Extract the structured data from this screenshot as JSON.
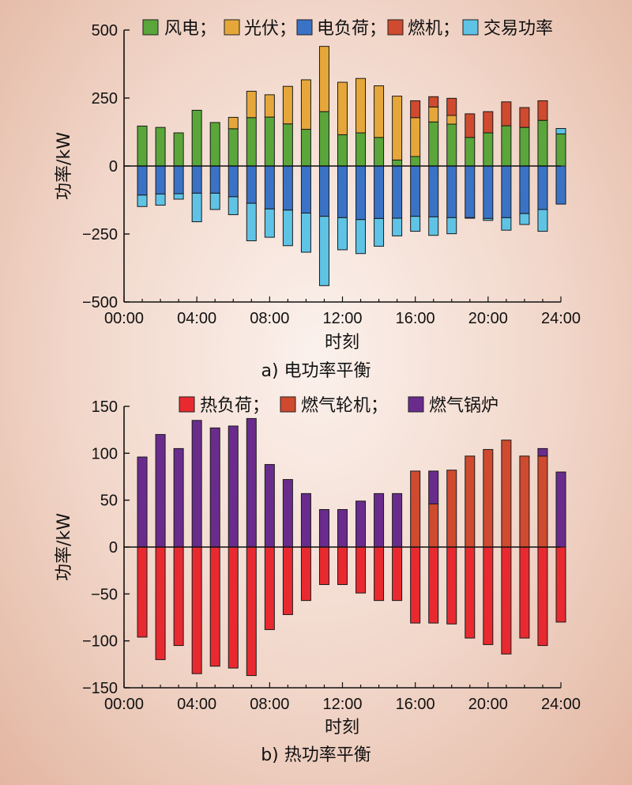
{
  "chart_data": [
    {
      "type": "bar",
      "stacked": true,
      "caption": "a) 电功率平衡",
      "xlabel": "时刻",
      "ylabel": "功率/kW",
      "ylim": [
        -500,
        500
      ],
      "yticks": [
        500,
        250,
        0,
        -250,
        -500
      ],
      "yticklabels": [
        "500",
        "250",
        "0",
        "−250",
        "−500"
      ],
      "xlim": [
        0,
        24
      ],
      "xticks": [
        0,
        4,
        8,
        12,
        16,
        20,
        24
      ],
      "xticklabels": [
        "00:00",
        "04:00",
        "08:00",
        "12:00",
        "16:00",
        "20:00",
        "24:00"
      ],
      "hours": [
        1,
        2,
        3,
        4,
        5,
        6,
        7,
        8,
        9,
        10,
        11,
        12,
        13,
        14,
        15,
        16,
        17,
        18,
        19,
        20,
        21,
        22,
        23,
        24
      ],
      "legend_position": "top",
      "legend": [
        "风电；",
        "光伏；",
        "电负荷；",
        "燃机；",
        "交易功率"
      ],
      "series": [
        {
          "name": "风电",
          "color": "#5aa63a",
          "values": [
            147,
            142,
            122,
            205,
            160,
            137,
            178,
            180,
            155,
            135,
            200,
            115,
            122,
            105,
            22,
            35,
            162,
            154,
            105,
            122,
            148,
            142,
            168,
            118
          ]
        },
        {
          "name": "光伏",
          "color": "#e6a73a",
          "values": [
            0,
            0,
            0,
            0,
            0,
            42,
            97,
            82,
            138,
            182,
            240,
            193,
            200,
            190,
            235,
            143,
            55,
            32,
            0,
            0,
            0,
            0,
            0,
            0
          ]
        },
        {
          "name": "燃机",
          "color": "#cf4a2e",
          "values": [
            0,
            0,
            0,
            0,
            0,
            0,
            0,
            0,
            0,
            0,
            0,
            0,
            0,
            0,
            0,
            62,
            38,
            63,
            87,
            78,
            88,
            73,
            72,
            0
          ]
        },
        {
          "name": "交易功率",
          "color": "#5fc3e6",
          "values": [
            0,
            0,
            0,
            0,
            0,
            0,
            0,
            0,
            0,
            0,
            0,
            0,
            0,
            0,
            0,
            0,
            0,
            0,
            0,
            0,
            0,
            0,
            0,
            20
          ]
        },
        {
          "name": "电负荷",
          "color": "#3a73c6",
          "values": [
            -107,
            -103,
            -102,
            -100,
            -100,
            -113,
            -137,
            -158,
            -162,
            -173,
            -185,
            -190,
            -197,
            -193,
            -192,
            -185,
            -187,
            -190,
            -190,
            -193,
            -190,
            -175,
            -160,
            -140
          ]
        },
        {
          "name": "交易功率",
          "color": "#5fc3e6",
          "values": [
            -42,
            -41,
            -20,
            -105,
            -60,
            -66,
            -138,
            -104,
            -131,
            -144,
            -255,
            -118,
            -125,
            -102,
            -65,
            -55,
            -68,
            -59,
            -2,
            -7,
            -46,
            -40,
            -80,
            0
          ]
        }
      ]
    },
    {
      "type": "bar",
      "stacked": true,
      "caption": "b) 热功率平衡",
      "xlabel": "时刻",
      "ylabel": "功率/kW",
      "ylim": [
        -150,
        150
      ],
      "yticks": [
        150,
        100,
        50,
        0,
        -50,
        -100,
        -150
      ],
      "yticklabels": [
        "150",
        "100",
        "50",
        "0",
        "−50",
        "−100",
        "−150"
      ],
      "xlim": [
        0,
        24
      ],
      "xticks": [
        0,
        4,
        8,
        12,
        16,
        20,
        24
      ],
      "xticklabels": [
        "00:00",
        "04:00",
        "08:00",
        "12:00",
        "16:00",
        "20:00",
        "24:00"
      ],
      "hours": [
        1,
        2,
        3,
        4,
        5,
        6,
        7,
        8,
        9,
        10,
        11,
        12,
        13,
        14,
        15,
        16,
        17,
        18,
        19,
        20,
        21,
        22,
        23,
        24
      ],
      "legend_position": "top",
      "legend": [
        "热负荷；",
        "燃气轮机；",
        "燃气锅炉"
      ],
      "series": [
        {
          "name": "燃气轮机",
          "color": "#cf4a2e",
          "values": [
            0,
            0,
            0,
            0,
            0,
            0,
            0,
            0,
            0,
            0,
            0,
            0,
            0,
            0,
            0,
            81,
            46,
            82,
            97,
            104,
            114,
            97,
            97,
            0
          ]
        },
        {
          "name": "燃气锅炉",
          "color": "#6a2c8c",
          "values": [
            96,
            120,
            105,
            135,
            127,
            129,
            137,
            88,
            72,
            57,
            40,
            40,
            49,
            57,
            57,
            0,
            35,
            0,
            0,
            0,
            0,
            0,
            8,
            80
          ]
        },
        {
          "name": "热负荷",
          "color": "#e82a30",
          "values": [
            -96,
            -120,
            -105,
            -135,
            -127,
            -129,
            -137,
            -88,
            -72,
            -57,
            -40,
            -40,
            -49,
            -57,
            -57,
            -81,
            -81,
            -82,
            -97,
            -104,
            -114,
            -97,
            -105,
            -80
          ]
        }
      ]
    }
  ]
}
